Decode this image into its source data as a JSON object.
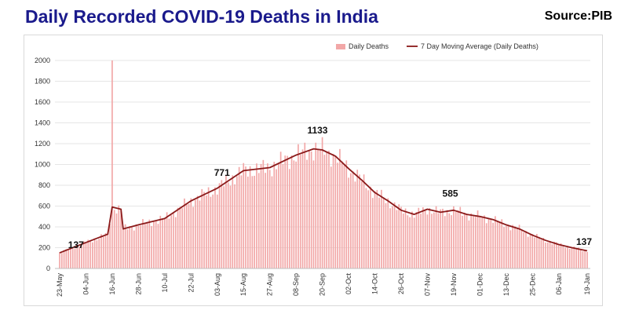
{
  "header": {
    "title": "Daily Recorded COVID-19 Deaths in India",
    "source": "Source:PIB"
  },
  "chart_data": {
    "type": "bar",
    "title": "Daily Recorded COVID-19 Deaths in India",
    "ylim": [
      0,
      2000
    ],
    "yticks": [
      0,
      200,
      400,
      600,
      800,
      1000,
      1200,
      1400,
      1600,
      1800,
      2000
    ],
    "xticks": [
      "23-May",
      "04-Jun",
      "16-Jun",
      "28-Jun",
      "10-Jul",
      "22-Jul",
      "03-Aug",
      "15-Aug",
      "27-Aug",
      "08-Sep",
      "20-Sep",
      "02-Oct",
      "14-Oct",
      "26-Oct",
      "07-Nov",
      "19-Nov",
      "01-Dec",
      "13-Dec",
      "25-Dec",
      "06-Jan",
      "19-Jan"
    ],
    "grid": true,
    "legend_position": "top-right",
    "bar_color": "#f2a7a7",
    "line_color": "#8b1a1a",
    "legend": [
      {
        "label": "Daily Deaths",
        "kind": "bar"
      },
      {
        "label": "7 Day Moving Average (Daily Deaths)",
        "kind": "line"
      }
    ],
    "series": [
      {
        "name": "7 Day Moving Average (Daily Deaths)",
        "x": [
          "23-May",
          "04-Jun",
          "14-Jun",
          "16-Jun",
          "20-Jun",
          "21-Jun",
          "28-Jun",
          "10-Jul",
          "22-Jul",
          "03-Aug",
          "15-Aug",
          "27-Aug",
          "08-Sep",
          "16-Sep",
          "20-Sep",
          "26-Sep",
          "02-Oct",
          "08-Oct",
          "14-Oct",
          "20-Oct",
          "26-Oct",
          "01-Nov",
          "07-Nov",
          "13-Nov",
          "19-Nov",
          "25-Nov",
          "01-Dec",
          "07-Dec",
          "13-Dec",
          "19-Dec",
          "25-Dec",
          "31-Dec",
          "06-Jan",
          "12-Jan",
          "19-Jan"
        ],
        "values": [
          150,
          250,
          330,
          590,
          570,
          380,
          420,
          480,
          650,
          771,
          940,
          970,
          1090,
          1150,
          1140,
          1080,
          960,
          850,
          730,
          650,
          560,
          520,
          570,
          540,
          560,
          520,
          500,
          470,
          420,
          380,
          320,
          270,
          230,
          200,
          170
        ]
      }
    ],
    "spike": {
      "x": "16-Jun",
      "value": 2000
    },
    "annotations": [
      {
        "label": "137",
        "x": "24-May",
        "value": 137
      },
      {
        "label": "771",
        "x": "03-Aug",
        "value": 771
      },
      {
        "label": "1133",
        "x": "16-Sep",
        "value": 1133
      },
      {
        "label": "585",
        "x": "16-Nov",
        "value": 585
      },
      {
        "label": "137",
        "x": "19-Jan",
        "value": 137
      }
    ]
  }
}
